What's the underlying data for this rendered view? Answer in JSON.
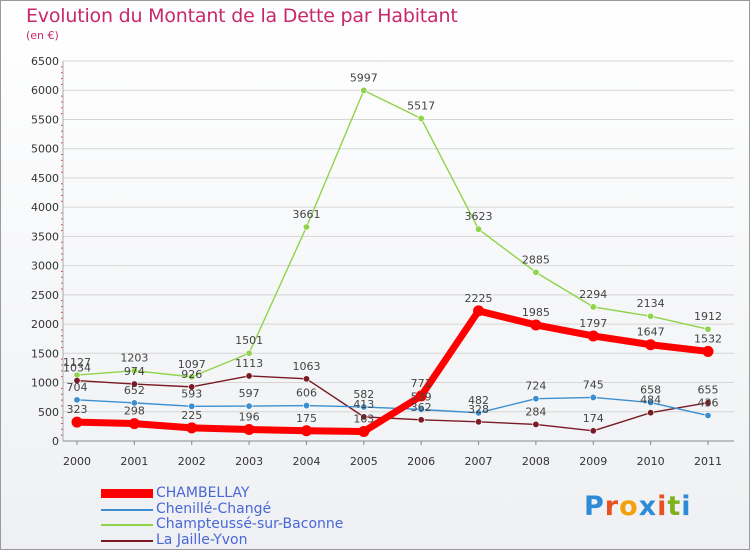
{
  "title": "Evolution du Montant de la Dette par Habitant",
  "subtitle": "(en €)",
  "logo": {
    "text": "Proxiti",
    "colors": [
      "#2e8bd6",
      "#e8521f",
      "#f2a10d",
      "#2e8bd6",
      "#e8521f",
      "#7fb21c",
      "#2e8bd6"
    ]
  },
  "chart_data": {
    "type": "line",
    "title": "Evolution du Montant de la Dette par Habitant",
    "ylabel": "(en €)",
    "xlabel": "",
    "ylim": [
      0,
      6500
    ],
    "yticks": [
      0,
      500,
      1000,
      1500,
      2000,
      2500,
      3000,
      3500,
      4000,
      4500,
      5000,
      5500,
      6000,
      6500
    ],
    "categories": [
      "2000",
      "2001",
      "2002",
      "2003",
      "2004",
      "2005",
      "2006",
      "2007",
      "2008",
      "2009",
      "2010",
      "2011"
    ],
    "grid": true,
    "legend": "bottom-left",
    "series": [
      {
        "name": "Champteussé-sur-Baconne",
        "color": "#8fd44a",
        "values": [
          1127,
          1203,
          1097,
          1501,
          3661,
          5997,
          5517,
          3623,
          2885,
          2294,
          2134,
          1912
        ]
      },
      {
        "name": "La Jaille-Yvon",
        "color": "#7a1a25",
        "values": [
          1034,
          974,
          926,
          1113,
          1063,
          413,
          362,
          328,
          284,
          174,
          484,
          655
        ]
      },
      {
        "name": "Chenillé-Changé",
        "color": "#3b8fd0",
        "values": [
          704,
          652,
          593,
          597,
          606,
          582,
          539,
          482,
          724,
          745,
          658,
          436
        ]
      },
      {
        "name": "CHAMBELLAY",
        "color": "#ff0000",
        "values": [
          323,
          298,
          225,
          196,
          175,
          163,
          771,
          2225,
          1985,
          1797,
          1647,
          1532
        ]
      }
    ]
  },
  "legend_order": [
    "CHAMBELLAY",
    "Chenillé-Changé",
    "Champteussé-sur-Baconne",
    "La Jaille-Yvon"
  ]
}
